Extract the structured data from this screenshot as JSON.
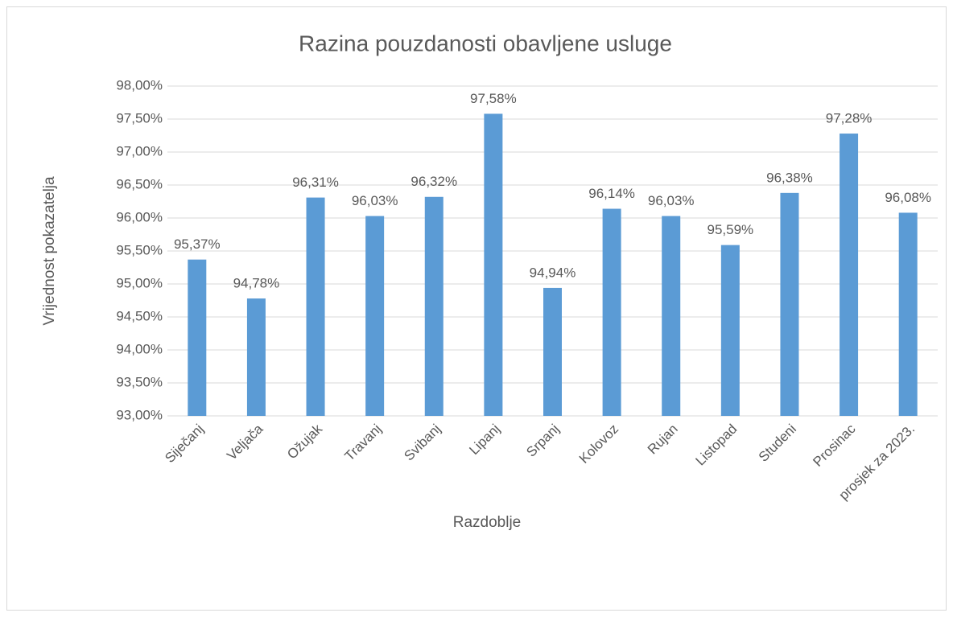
{
  "chart_data": {
    "type": "bar",
    "title": "Razina pouzdanosti obavljene usluge",
    "x_label": "Razdoblje",
    "y_label": "Vrijednost pokazatelja",
    "categories": [
      "Siječanj",
      "Veljača",
      "Ožujak",
      "Travanj",
      "Svibanj",
      "Lipanj",
      "Srpanj",
      "Kolovoz",
      "Rujan",
      "Listopad",
      "Studeni",
      "Prosinac",
      "prosjek za 2023."
    ],
    "values": [
      95.37,
      94.78,
      96.31,
      96.03,
      96.32,
      97.58,
      94.94,
      96.14,
      96.03,
      95.59,
      96.38,
      97.28,
      96.08
    ],
    "value_labels": [
      "95,37%",
      "94,78%",
      "96,31%",
      "96,03%",
      "96,32%",
      "97,58%",
      "94,94%",
      "96,14%",
      "96,03%",
      "95,59%",
      "96,38%",
      "97,28%",
      "96,08%"
    ],
    "color": "#5b9bd5",
    "ylim": [
      93,
      98
    ],
    "yticks": [
      {
        "value": 93,
        "label": "93,00%"
      },
      {
        "value": 93.5,
        "label": "93,50%"
      },
      {
        "value": 94,
        "label": "94,00%"
      },
      {
        "value": 94.5,
        "label": "94,50%"
      },
      {
        "value": 95,
        "label": "95,00%"
      },
      {
        "value": 95.5,
        "label": "95,50%"
      },
      {
        "value": 96,
        "label": "96,00%"
      },
      {
        "value": 96.5,
        "label": "96,50%"
      },
      {
        "value": 97,
        "label": "97,00%"
      },
      {
        "value": 97.5,
        "label": "97,50%"
      },
      {
        "value": 98,
        "label": "98,00%"
      }
    ],
    "grid": true
  }
}
